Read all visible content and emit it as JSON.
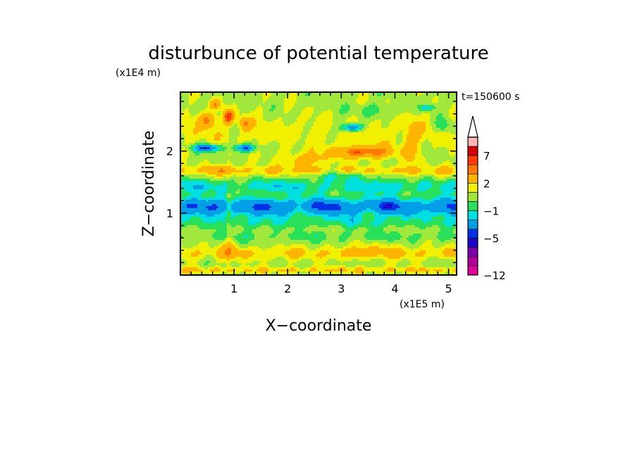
{
  "chart_data": {
    "type": "heatmap",
    "title": "disturbunce of potential temperature",
    "time_label": "t=150600 s",
    "xlabel": "X−coordinate",
    "ylabel": "Z−coordinate",
    "x_unit": "(x1E5 m)",
    "y_unit": "(x1E4 m)",
    "xlim": [
      0,
      5.15
    ],
    "ylim": [
      0,
      2.95
    ],
    "x_ticks": [
      {
        "value": 1,
        "label": "1"
      },
      {
        "value": 2,
        "label": "2"
      },
      {
        "value": 3,
        "label": "3"
      },
      {
        "value": 4,
        "label": "4"
      },
      {
        "value": 5,
        "label": "5"
      }
    ],
    "y_ticks": [
      {
        "value": 1,
        "label": "1"
      },
      {
        "value": 2,
        "label": "2"
      }
    ],
    "colorbar": {
      "levels": [
        -12,
        -10,
        -8,
        -6,
        -5,
        -4,
        -2,
        -1,
        0,
        1,
        2,
        4,
        5,
        7,
        8,
        10
      ],
      "colors": [
        "#e0009a",
        "#b4009a",
        "#7b00a8",
        "#1e00c8",
        "#0032e6",
        "#009fe8",
        "#00e0e0",
        "#28e05a",
        "#a0e83c",
        "#f0f000",
        "#ffb400",
        "#ff7800",
        "#ff3c00",
        "#d20000",
        "#ffb4b4"
      ],
      "extend": "max",
      "tick_labels": [
        {
          "value": -12,
          "label": "−12"
        },
        {
          "value": -5,
          "label": "−5"
        },
        {
          "value": -1,
          "label": "−1"
        },
        {
          "value": 2,
          "label": "2"
        },
        {
          "value": 7,
          "label": "7"
        }
      ]
    },
    "field": {
      "background": 0.6,
      "bands": [
        {
          "z": 0.08,
          "w": 0.05,
          "a": 1.5,
          "k": 7.0
        },
        {
          "z": 0.35,
          "w": 0.1,
          "a": 1.5,
          "k": 2.0
        },
        {
          "z": 0.62,
          "w": 0.08,
          "a": -0.8,
          "k": 1.5
        },
        {
          "z": 0.85,
          "w": 0.1,
          "a": -1.2,
          "k": 1.0
        },
        {
          "z": 1.1,
          "w": 0.15,
          "a": -4.2,
          "k": 1.8
        },
        {
          "z": 1.43,
          "w": 0.12,
          "a": -1.9,
          "k": 1.2
        },
        {
          "z": 1.68,
          "w": 0.08,
          "a": 1.5,
          "k": 2.5
        },
        {
          "z": 2.3,
          "w": 0.3,
          "a": 0.8,
          "k": 2.0
        }
      ],
      "blobs": [
        {
          "x": 0.9,
          "z": 2.55,
          "sx": 0.09,
          "sz": 0.1,
          "a": 5.5
        },
        {
          "x": 0.5,
          "z": 2.5,
          "sx": 0.15,
          "sz": 0.12,
          "a": 3.5
        },
        {
          "x": 0.65,
          "z": 2.75,
          "sx": 0.1,
          "sz": 0.08,
          "a": 3.2
        },
        {
          "x": 1.2,
          "z": 2.45,
          "sx": 0.1,
          "sz": 0.1,
          "a": 3.0
        },
        {
          "x": 3.4,
          "z": 1.98,
          "sx": 0.55,
          "sz": 0.1,
          "a": 4.4
        },
        {
          "x": 2.3,
          "z": 1.85,
          "sx": 0.4,
          "sz": 0.12,
          "a": 2.2
        },
        {
          "x": 4.3,
          "z": 2.1,
          "sx": 0.15,
          "sz": 0.4,
          "a": 1.8
        },
        {
          "x": 0.8,
          "z": 1.7,
          "sx": 0.3,
          "sz": 0.08,
          "a": 1.5
        },
        {
          "x": 0.5,
          "z": 2.05,
          "sx": 0.25,
          "sz": 0.06,
          "a": -5.8
        },
        {
          "x": 1.2,
          "z": 2.05,
          "sx": 0.18,
          "sz": 0.06,
          "a": -5.3
        },
        {
          "x": 3.2,
          "z": 2.38,
          "sx": 0.2,
          "sz": 0.06,
          "a": -5.0
        },
        {
          "x": 4.6,
          "z": 2.7,
          "sx": 0.15,
          "sz": 0.05,
          "a": -2.5
        },
        {
          "x": 4.9,
          "z": 2.4,
          "sx": 0.15,
          "sz": 0.12,
          "a": -2.0
        },
        {
          "x": 3.6,
          "z": 2.65,
          "sx": 0.5,
          "sz": 0.1,
          "a": -1.2
        },
        {
          "x": 3.0,
          "z": 1.6,
          "sx": 0.6,
          "sz": 0.08,
          "a": -1.5
        },
        {
          "x": 0.9,
          "z": 0.4,
          "sx": 0.2,
          "sz": 0.15,
          "a": 1.2
        },
        {
          "x": 3.6,
          "z": 0.4,
          "sx": 0.5,
          "sz": 0.12,
          "a": 0.9
        },
        {
          "x": 0.9,
          "z": 0.9,
          "sx": 0.04,
          "sz": 0.9,
          "a": 1.2
        }
      ]
    }
  }
}
